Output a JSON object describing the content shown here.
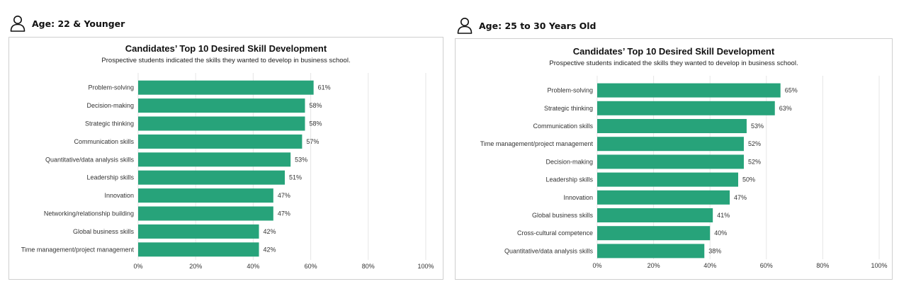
{
  "panels": [
    {
      "header": "Age: 22 & Younger",
      "icon": "person-icon",
      "chart_title": "Candidates’ Top 10 Desired Skill Development",
      "chart_subtitle": "Prospective students indicated the skills they wanted to develop in business school."
    },
    {
      "header": "Age: 25 to 30 Years Old",
      "icon": "person-icon",
      "chart_title": "Candidates’ Top 10 Desired Skill Development",
      "chart_subtitle": "Prospective students indicated the skills they wanted to develop in business school."
    }
  ],
  "colors": {
    "bar": "#27a37a",
    "grid": "#e6e6e6",
    "text": "#333333"
  },
  "chart_data": [
    {
      "type": "bar",
      "orientation": "horizontal",
      "title": "Candidates’ Top 10 Desired Skill Development",
      "subtitle": "Prospective students indicated the skills they wanted to develop in business school.",
      "categories": [
        "Problem-solving",
        "Decision-making",
        "Strategic thinking",
        "Communication skills",
        "Quantitative/data analysis skills",
        "Leadership skills",
        "Innovation",
        "Networking/relationship building",
        "Global business skills",
        "Time management/project management"
      ],
      "values": [
        61,
        58,
        58,
        57,
        53,
        51,
        47,
        47,
        42,
        42
      ],
      "data_labels": [
        "61%",
        "58%",
        "58%",
        "57%",
        "53%",
        "51%",
        "47%",
        "47%",
        "42%",
        "42%"
      ],
      "xlim": [
        0,
        100
      ],
      "xticks": [
        "0%",
        "20%",
        "40%",
        "60%",
        "80%",
        "100%"
      ],
      "grid": true,
      "legend": "none"
    },
    {
      "type": "bar",
      "orientation": "horizontal",
      "title": "Candidates’ Top 10 Desired Skill Development",
      "subtitle": "Prospective students indicated the skills they wanted to develop in business school.",
      "categories": [
        "Problem-solving",
        "Strategic thinking",
        "Communication skills",
        "Time management/project management",
        "Decision-making",
        "Leadership skills",
        "Innovation",
        "Global business skills",
        "Cross-cultural competence",
        "Quantitative/data analysis skills"
      ],
      "values": [
        65,
        63,
        53,
        52,
        52,
        50,
        47,
        41,
        40,
        38
      ],
      "data_labels": [
        "65%",
        "63%",
        "53%",
        "52%",
        "52%",
        "50%",
        "47%",
        "41%",
        "40%",
        "38%"
      ],
      "xlim": [
        0,
        100
      ],
      "xticks": [
        "0%",
        "20%",
        "40%",
        "60%",
        "80%",
        "100%"
      ],
      "grid": true,
      "legend": "none"
    }
  ]
}
